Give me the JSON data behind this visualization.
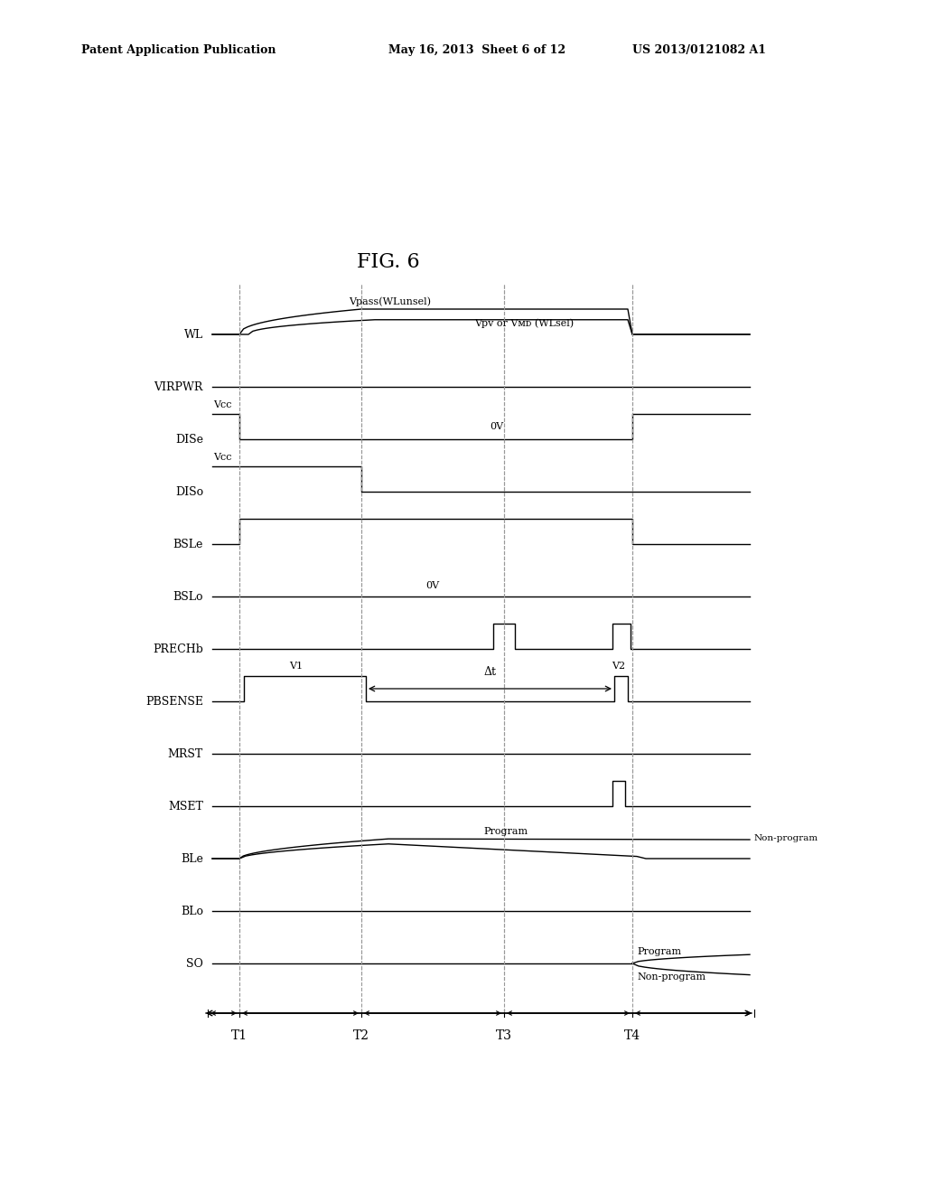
{
  "title": "FIG. 6",
  "header_left": "Patent Application Publication",
  "header_mid": "May 16, 2013  Sheet 6 of 12",
  "header_right": "US 2013/0121082 A1",
  "background_color": "#ffffff",
  "signals": [
    "WL",
    "VIRPWR",
    "DISe",
    "DISo",
    "BSLe",
    "BSLo",
    "PRECHb",
    "PBSENSE",
    "MRST",
    "MSET",
    "BLe",
    "BLo",
    "SO"
  ],
  "t_labels": [
    "T1",
    "T2",
    "T3",
    "T4"
  ],
  "fig_width": 10.24,
  "fig_height": 13.2,
  "dpi": 100
}
